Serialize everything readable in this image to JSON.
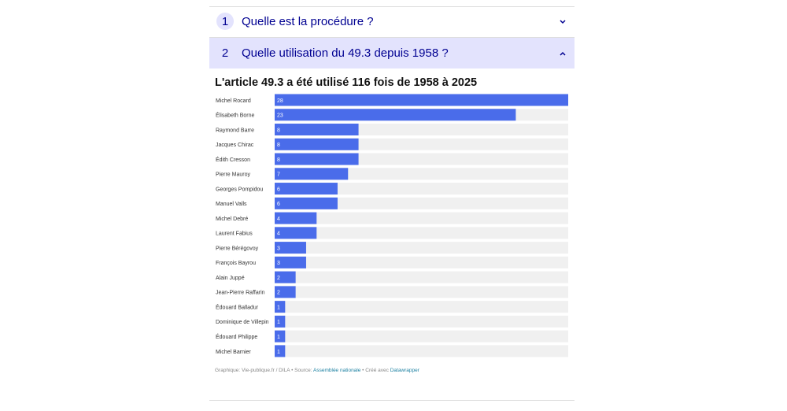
{
  "accordion": [
    {
      "number": "1",
      "title": "Quelle est la procédure ?"
    },
    {
      "number": "2",
      "title": "Quelle utilisation du 49.3 depuis 1958 ?"
    }
  ],
  "chart_data": {
    "type": "bar",
    "orientation": "horizontal",
    "title": "L'article 49.3 a été utilisé 116 fois de 1958 à 2025",
    "categories": [
      "Michel Rocard",
      "Élisabeth Borne",
      "Raymond Barre",
      "Jacques Chirac",
      "Édith Cresson",
      "Pierre Mauroy",
      "Georges Pompidou",
      "Manuel Valls",
      "Michel Debré",
      "Laurent Fabius",
      "Pierre Bérégovoy",
      "François Bayrou",
      "Alain Juppé",
      "Jean-Pierre Raffarin",
      "Édouard Balladur",
      "Dominique de Villepin",
      "Édouard Philippe",
      "Michel Barnier"
    ],
    "values": [
      28,
      23,
      8,
      8,
      8,
      7,
      6,
      6,
      4,
      4,
      3,
      3,
      2,
      2,
      1,
      1,
      1,
      1
    ],
    "color": "#4a6cea",
    "xlim": [
      0,
      28
    ],
    "footer": {
      "credit": "Graphique: Vie-publique.fr / DILA • Source: ",
      "source": "Assemblée nationale",
      "made": " • Créé avec ",
      "tool": "Datawrapper"
    }
  }
}
